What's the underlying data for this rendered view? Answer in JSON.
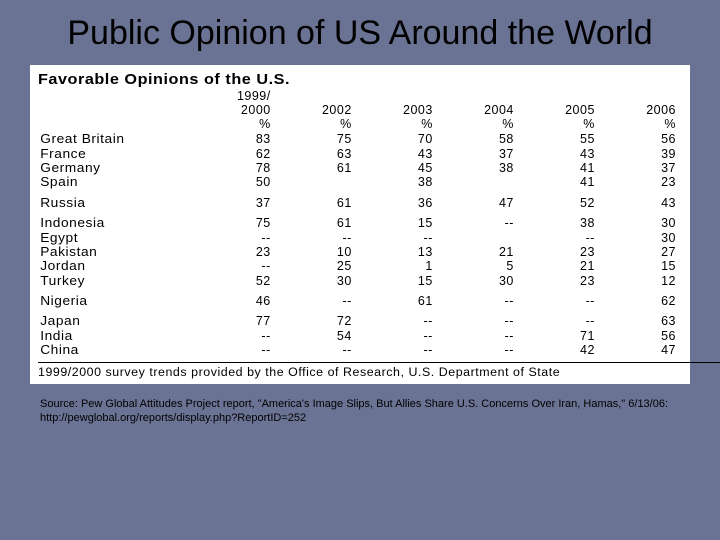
{
  "slide": {
    "title": "Public Opinion of US Around the World"
  },
  "table": {
    "title": "Favorable Opinions of the U.S.",
    "years_line1": [
      "1999/",
      "",
      "",
      "",
      "",
      ""
    ],
    "years_line2": [
      "2000",
      "2002",
      "2003",
      "2004",
      "2005",
      "2006"
    ],
    "pct_row": [
      "%",
      "%",
      "%",
      "%",
      "%",
      "%"
    ],
    "groups": [
      [
        {
          "country": "Great Britain",
          "vals": [
            "83",
            "75",
            "70",
            "58",
            "55",
            "56"
          ]
        },
        {
          "country": "France",
          "vals": [
            "62",
            "63",
            "43",
            "37",
            "43",
            "39"
          ]
        },
        {
          "country": "Germany",
          "vals": [
            "78",
            "61",
            "45",
            "38",
            "41",
            "37"
          ]
        },
        {
          "country": "Spain",
          "vals": [
            "50",
            "",
            "38",
            "",
            "41",
            "23"
          ]
        }
      ],
      [
        {
          "country": "Russia",
          "vals": [
            "37",
            "61",
            "36",
            "47",
            "52",
            "43"
          ]
        }
      ],
      [
        {
          "country": "Indonesia",
          "vals": [
            "75",
            "61",
            "15",
            "--",
            "38",
            "30"
          ]
        },
        {
          "country": "Egypt",
          "vals": [
            "--",
            "--",
            "--",
            "",
            "--",
            "30"
          ]
        },
        {
          "country": "Pakistan",
          "vals": [
            "23",
            "10",
            "13",
            "21",
            "23",
            "27"
          ]
        },
        {
          "country": "Jordan",
          "vals": [
            "--",
            "25",
            "1",
            "5",
            "21",
            "15"
          ]
        },
        {
          "country": "Turkey",
          "vals": [
            "52",
            "30",
            "15",
            "30",
            "23",
            "12"
          ]
        }
      ],
      [
        {
          "country": "Nigeria",
          "vals": [
            "46",
            "--",
            "61",
            "--",
            "--",
            "62"
          ]
        }
      ],
      [
        {
          "country": "Japan",
          "vals": [
            "77",
            "72",
            "--",
            "--",
            "--",
            "63"
          ]
        },
        {
          "country": "India",
          "vals": [
            "--",
            "54",
            "--",
            "--",
            "71",
            "56"
          ]
        },
        {
          "country": "China",
          "vals": [
            "--",
            "--",
            "--",
            "--",
            "42",
            "47"
          ]
        }
      ]
    ],
    "footnote": "1999/2000 survey trends provided by the Office of Research, U.S. Department of State"
  },
  "source": "Source: Pew Global Attitudes Project report, \"America's Image Slips, But Allies Share U.S. Concerns Over Iran, Hamas,\" 6/13/06:  http://pewglobal.org/reports/display.php?ReportID=252",
  "colors": {
    "background": "#6b7394",
    "panel": "#ffffff",
    "text": "#000000"
  }
}
